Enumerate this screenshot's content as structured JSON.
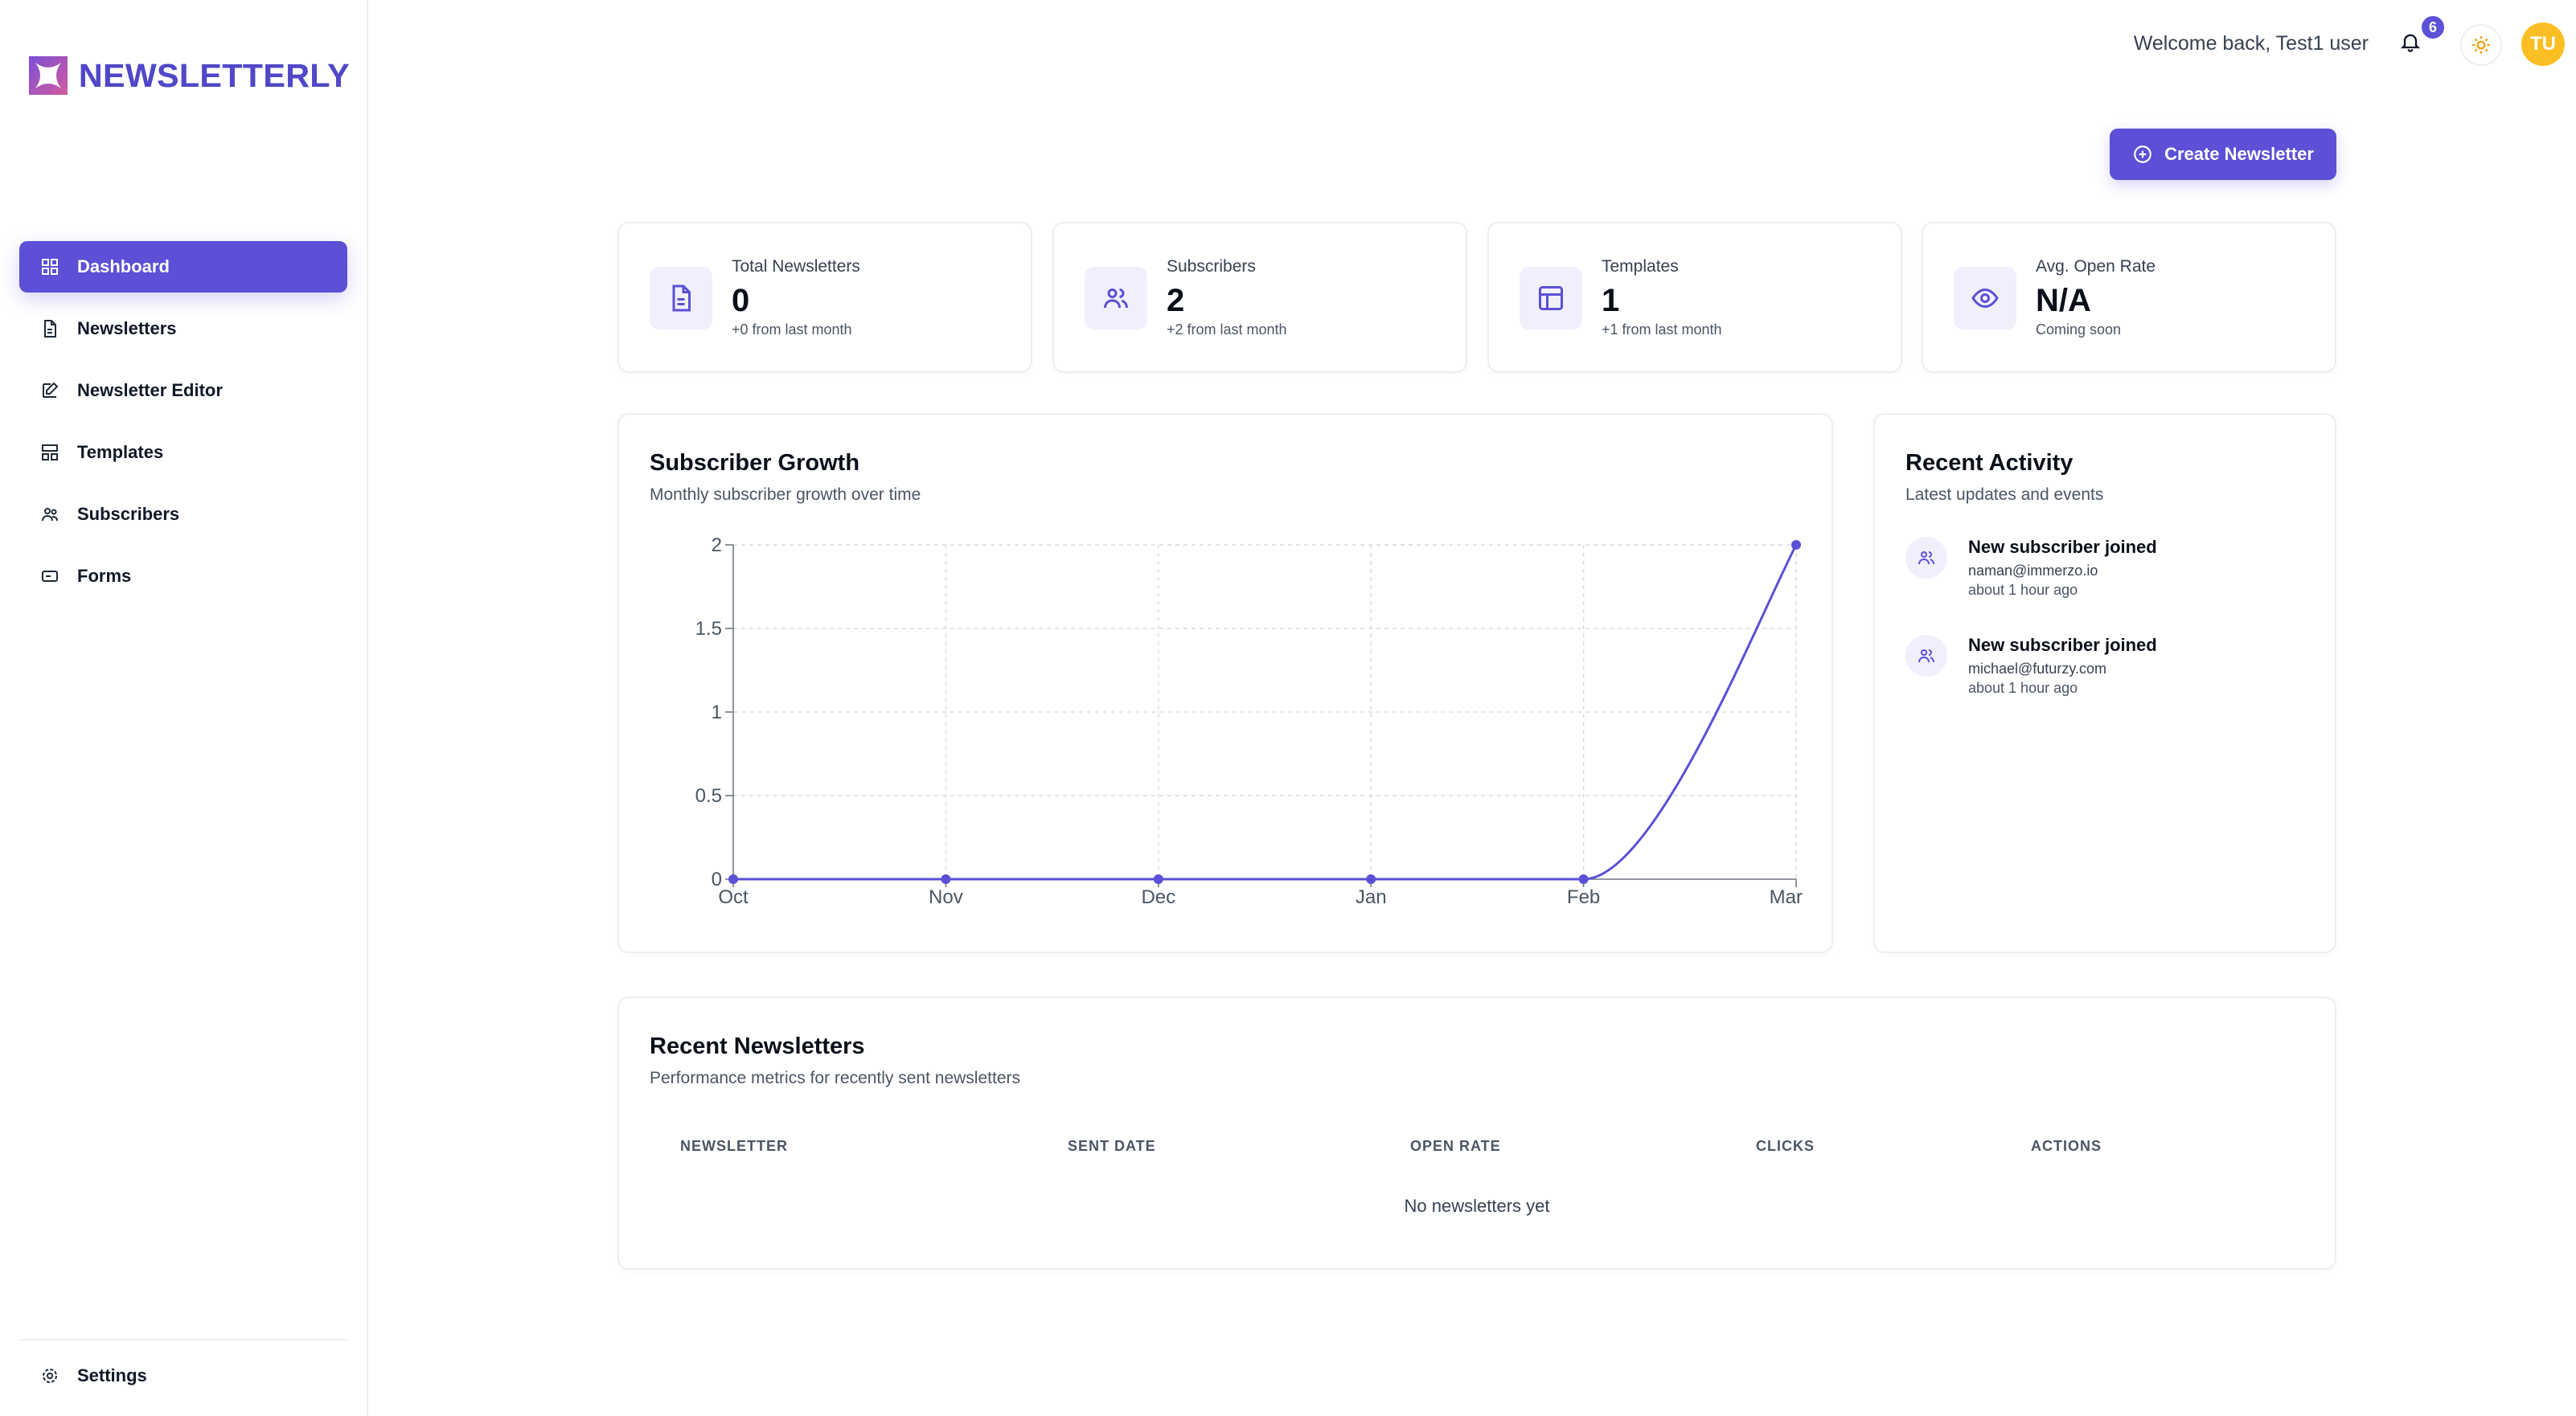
{
  "app": {
    "name": "NEWSLETTERLY"
  },
  "sidebar": {
    "items": [
      {
        "label": "Dashboard",
        "icon": "dashboard-icon",
        "active": true
      },
      {
        "label": "Newsletters",
        "icon": "document-icon"
      },
      {
        "label": "Newsletter Editor",
        "icon": "edit-icon"
      },
      {
        "label": "Templates",
        "icon": "template-icon"
      },
      {
        "label": "Subscribers",
        "icon": "users-icon"
      },
      {
        "label": "Forms",
        "icon": "form-icon"
      }
    ],
    "settings_label": "Settings"
  },
  "header": {
    "welcome": "Welcome back, Test1 user",
    "notification_count": "6",
    "avatar_initials": "TU"
  },
  "actions": {
    "create_label": "Create Newsletter"
  },
  "stats": [
    {
      "label": "Total Newsletters",
      "value": "0",
      "sub": "+0 from last month",
      "icon": "document-icon"
    },
    {
      "label": "Subscribers",
      "value": "2",
      "sub": "+2 from last month",
      "icon": "users-icon"
    },
    {
      "label": "Templates",
      "value": "1",
      "sub": "+1 from last month",
      "icon": "template-icon"
    },
    {
      "label": "Avg. Open Rate",
      "value": "N/A",
      "sub": "Coming soon",
      "icon": "eye-icon"
    }
  ],
  "growth": {
    "title": "Subscriber Growth",
    "subtitle": "Monthly subscriber growth over time"
  },
  "chart_data": {
    "type": "line",
    "categories": [
      "Oct",
      "Nov",
      "Dec",
      "Jan",
      "Feb",
      "Mar"
    ],
    "values": [
      0,
      0,
      0,
      0,
      0,
      2
    ],
    "yticks": [
      "0",
      "0.5",
      "1",
      "1.5",
      "2"
    ],
    "ylim": [
      0,
      2
    ],
    "grid": true,
    "color": "#5b50d6"
  },
  "activity": {
    "title": "Recent Activity",
    "subtitle": "Latest updates and events",
    "items": [
      {
        "title": "New subscriber joined",
        "email": "naman@immerzo.io",
        "time": "about 1 hour ago"
      },
      {
        "title": "New subscriber joined",
        "email": "michael@futurzy.com",
        "time": "about 1 hour ago"
      }
    ]
  },
  "recent": {
    "title": "Recent Newsletters",
    "subtitle": "Performance metrics for recently sent newsletters",
    "columns": [
      "NEWSLETTER",
      "SENT DATE",
      "OPEN RATE",
      "CLICKS",
      "ACTIONS"
    ],
    "empty": "No newsletters yet"
  }
}
